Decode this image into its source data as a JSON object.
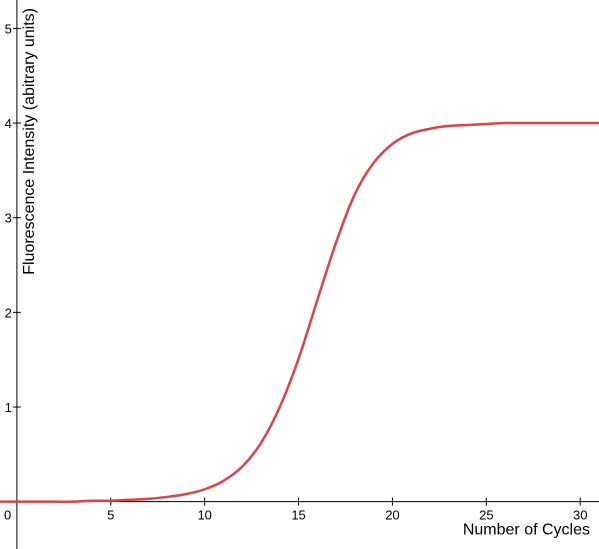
{
  "chart_data": {
    "type": "line",
    "title": "",
    "xlabel": "Number of Cycles",
    "ylabel": "Fluorescence Intensity (abitrary units)",
    "xlim": [
      -0.9,
      31
    ],
    "ylim": [
      -0.5,
      5.3
    ],
    "grid": false,
    "origin_label": "0",
    "x_ticks": [
      5,
      10,
      15,
      20,
      25,
      30
    ],
    "y_ticks": [
      1,
      2,
      3,
      4,
      5
    ],
    "line_color": "#d9434a",
    "series": [
      {
        "x": [
          0,
          1,
          2,
          3,
          4,
          5,
          6,
          7,
          8,
          9,
          10,
          11,
          12,
          13,
          14,
          15,
          16,
          17,
          18,
          19,
          20,
          21,
          22,
          23,
          24,
          25,
          26,
          27,
          28,
          29,
          30,
          31
        ],
        "values": [
          0.0,
          0.0,
          0.0,
          0.0,
          0.01,
          0.01,
          0.02,
          0.03,
          0.05,
          0.08,
          0.13,
          0.22,
          0.37,
          0.62,
          1.0,
          1.51,
          2.13,
          2.74,
          3.25,
          3.58,
          3.78,
          3.89,
          3.94,
          3.97,
          3.98,
          3.99,
          4.0,
          4.0,
          4.0,
          4.0,
          4.0,
          4.0
        ]
      }
    ]
  }
}
